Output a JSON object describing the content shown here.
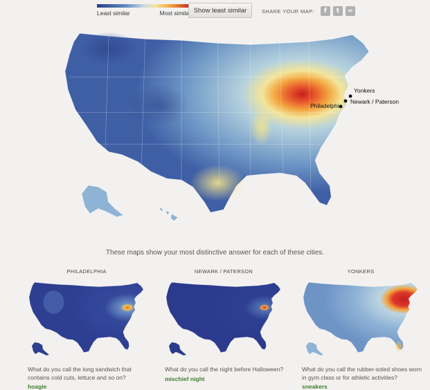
{
  "legend": {
    "low_label": "Least similar",
    "high_label": "Most similar"
  },
  "toggle_button": "Show least similar",
  "share": {
    "label": "SHARE YOUR MAP:",
    "icons": [
      "facebook-icon",
      "twitter-icon",
      "link-icon"
    ]
  },
  "main_map": {
    "cities": [
      {
        "name": "Yonkers"
      },
      {
        "name": "Newark / Paterson"
      },
      {
        "name": "Philadelphia"
      }
    ]
  },
  "caption": "These maps show your most distinctive answer for each of these cities.",
  "panels": [
    {
      "city": "PHILADELPHIA",
      "question": "What do you call the long sandwich that contains cold cuts, lettuce and so on?",
      "answer": "hoagie"
    },
    {
      "city": "NEWARK / PATERSON",
      "question": "What do you call the night before Halloween?",
      "answer": "mischief night"
    },
    {
      "city": "YONKERS",
      "question": "What do you call the rubber-soled shoes worn in gym class or for athletic activities?",
      "answer": "sneakers"
    }
  ]
}
